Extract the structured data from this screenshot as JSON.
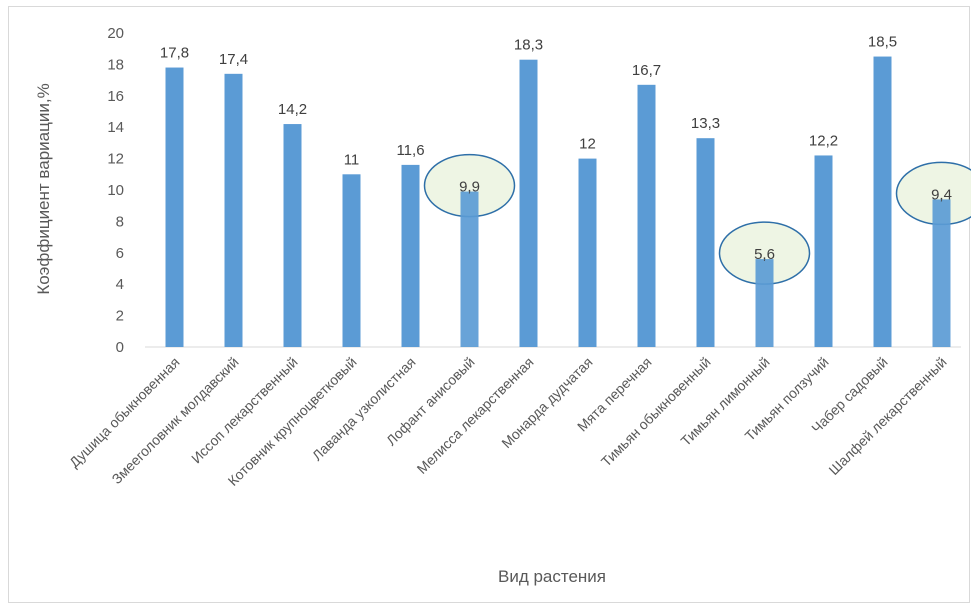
{
  "chart_data": {
    "type": "bar",
    "title": "",
    "xlabel": "Вид растения",
    "ylabel": "Коэффициент  вариации,%",
    "ylim": [
      0,
      20
    ],
    "yticks": [
      0,
      2,
      4,
      6,
      8,
      10,
      12,
      14,
      16,
      18,
      20
    ],
    "grid": false,
    "categories": [
      "Душица обыкновенная",
      "Змееголовник молдавский",
      "Иссоп лекарственный",
      "Котовник крупноцветковый",
      "Лаванда узколистная",
      "Лофант анисовый",
      "Мелисса лекарственная",
      "Монарда дудчатая",
      "Мята перечная",
      "Тимьян обыкновенный",
      "Тимьян лимонный",
      "Тимьян ползучий",
      "Чабер садовый",
      "Шалфей лекарственный"
    ],
    "values": [
      17.8,
      17.4,
      14.2,
      11,
      11.6,
      9.9,
      18.3,
      12,
      16.7,
      13.3,
      5.6,
      12.2,
      18.5,
      9.4
    ],
    "value_labels": [
      "17,8",
      "17,4",
      "14,2",
      "11",
      "11,6",
      "9,9",
      "18,3",
      "12",
      "16,7",
      "13,3",
      "5,6",
      "12,2",
      "18,5",
      "9,4"
    ],
    "highlighted": [
      5,
      10,
      13
    ],
    "colors": {
      "bar": "#5b9bd5",
      "highlight_fill": "#eef5e4",
      "highlight_stroke": "#2e6fa8"
    }
  }
}
